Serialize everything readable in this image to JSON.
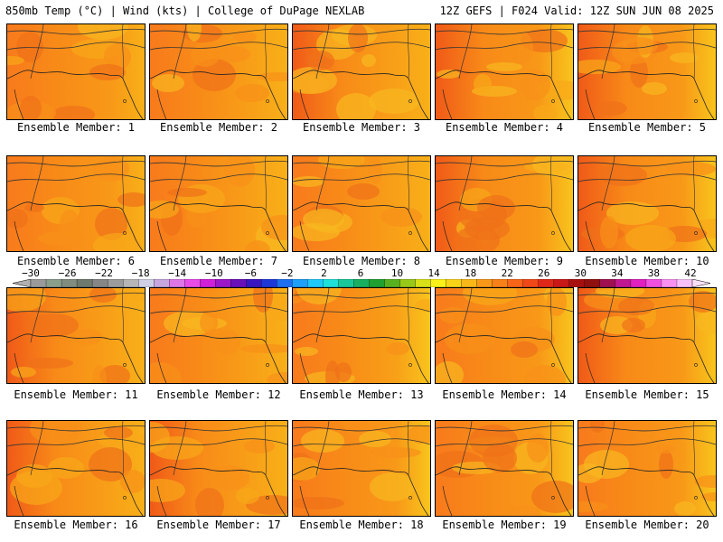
{
  "header": {
    "left_title": "850mb Temp (°C) | Wind (kts) | College of DuPage NEXLAB",
    "right_title": "12Z GEFS | F024 Valid: 12Z SUN JUN 08 2025"
  },
  "panels": [
    {
      "label": "Ensemble Member: 1"
    },
    {
      "label": "Ensemble Member: 2"
    },
    {
      "label": "Ensemble Member: 3"
    },
    {
      "label": "Ensemble Member: 4"
    },
    {
      "label": "Ensemble Member: 5"
    },
    {
      "label": "Ensemble Member: 6"
    },
    {
      "label": "Ensemble Member: 7"
    },
    {
      "label": "Ensemble Member: 8"
    },
    {
      "label": "Ensemble Member: 9"
    },
    {
      "label": "Ensemble Member: 10"
    },
    {
      "label": "Ensemble Member: 11"
    },
    {
      "label": "Ensemble Member: 12"
    },
    {
      "label": "Ensemble Member: 13"
    },
    {
      "label": "Ensemble Member: 14"
    },
    {
      "label": "Ensemble Member: 15"
    },
    {
      "label": "Ensemble Member: 16"
    },
    {
      "label": "Ensemble Member: 17"
    },
    {
      "label": "Ensemble Member: 18"
    },
    {
      "label": "Ensemble Member: 19"
    },
    {
      "label": "Ensemble Member: 20"
    }
  ],
  "colorbar": {
    "tick_labels": [
      "−30",
      "−26",
      "−22",
      "−18",
      "−14",
      "−10",
      "−6",
      "−2",
      "2",
      "6",
      "10",
      "14",
      "18",
      "22",
      "26",
      "30",
      "34",
      "38",
      "42"
    ],
    "colors": [
      "#9a9a9a",
      "#8a9f8a",
      "#7f8c7f",
      "#6e7a6e",
      "#868686",
      "#9c9c9c",
      "#b6b6b6",
      "#cfcfe6",
      "#c7a6e0",
      "#dd77e8",
      "#e84ce8",
      "#d020d8",
      "#9a18c8",
      "#6a10b8",
      "#3a16c0",
      "#1e38d8",
      "#1e6ef0",
      "#1ea0f8",
      "#1ec8f8",
      "#1ee0d8",
      "#18c898",
      "#18b060",
      "#20a030",
      "#58b020",
      "#98c818",
      "#d8e018",
      "#f8f018",
      "#f8d418",
      "#f8b818",
      "#f89818",
      "#f88018",
      "#f86418",
      "#f04818",
      "#e02818",
      "#c81818",
      "#a81010",
      "#901010",
      "#a01050",
      "#c01890",
      "#e020c0",
      "#f050e0",
      "#f890f0",
      "#f8c0f8"
    ]
  }
}
